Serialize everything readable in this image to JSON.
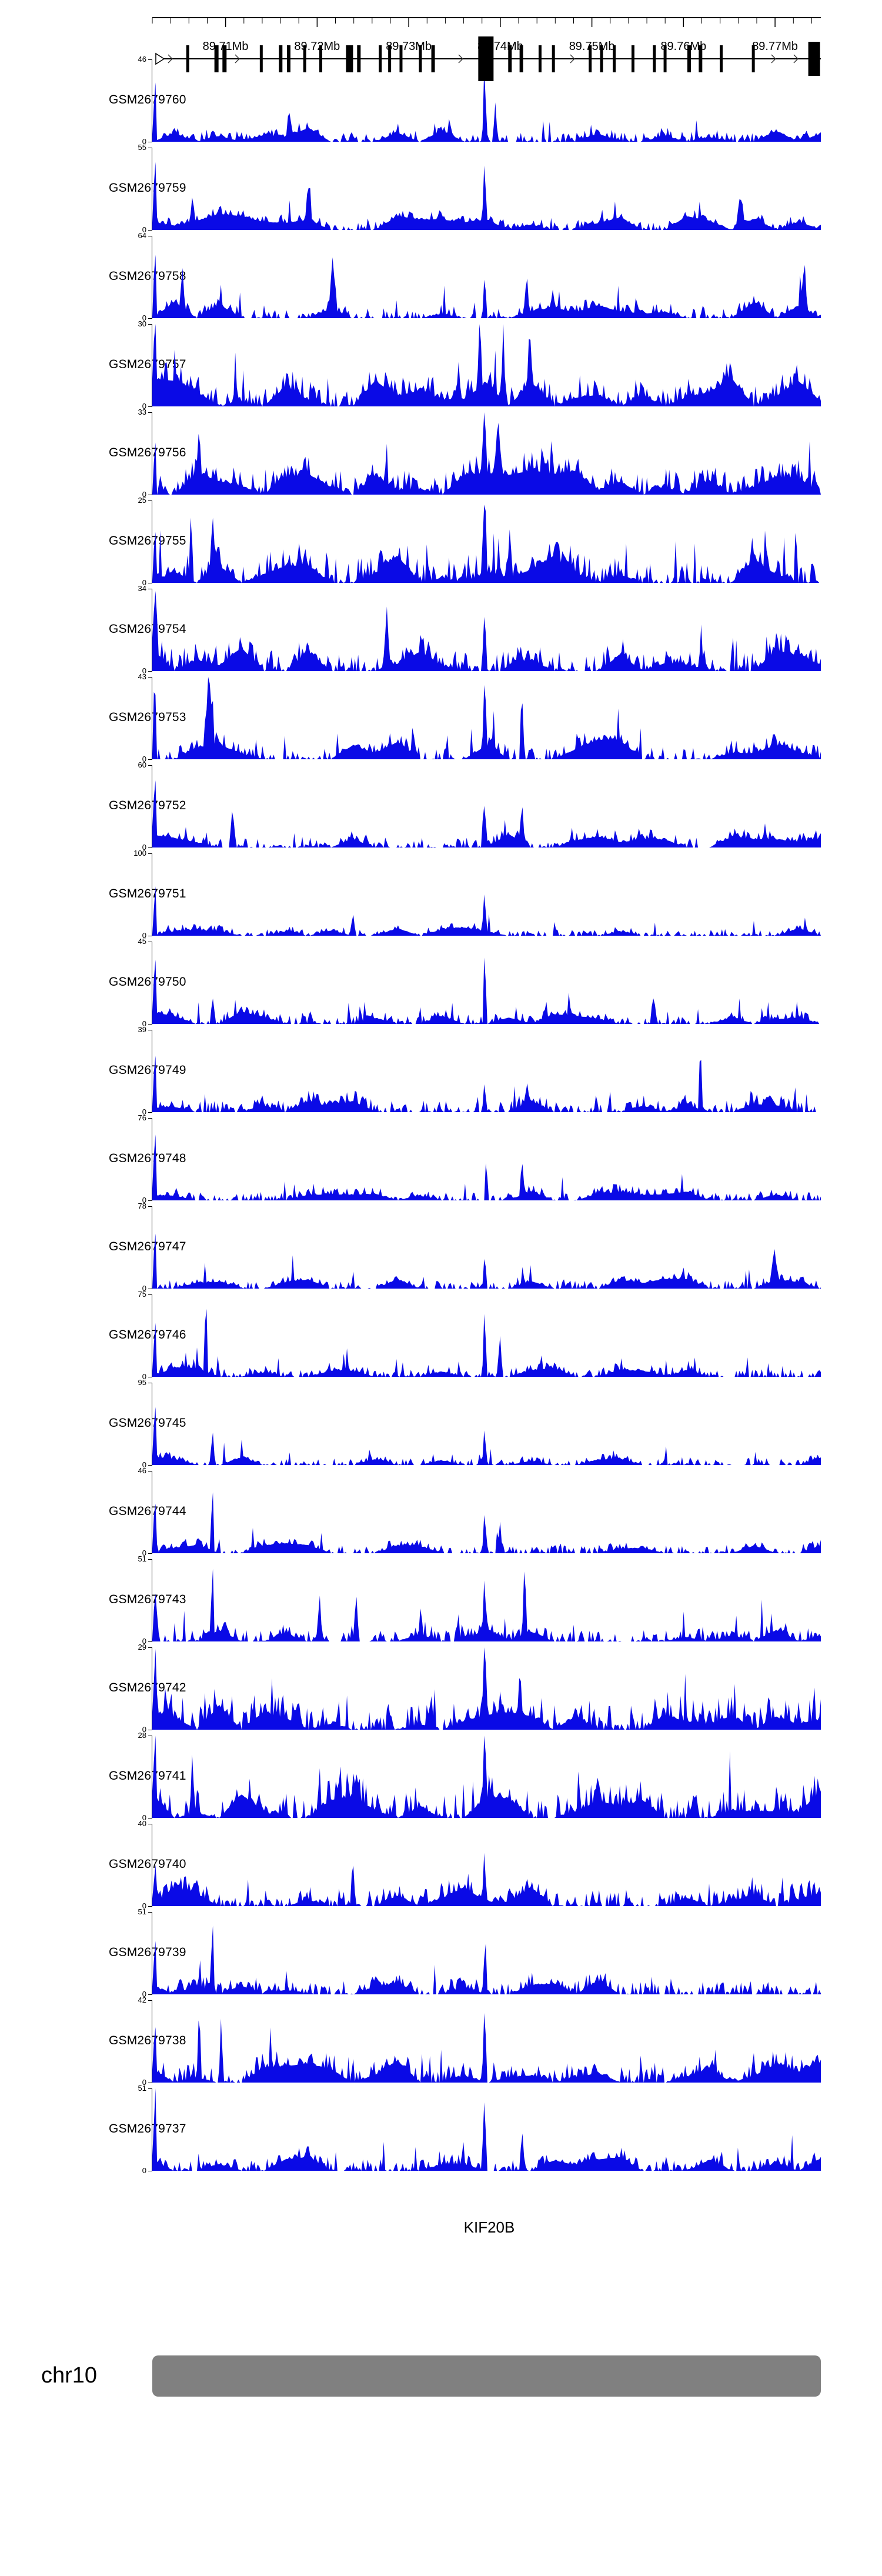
{
  "chart_data": {
    "type": "area",
    "chromosome": "chr10",
    "x_range_mb": [
      89.702,
      89.775
    ],
    "x_ticks_mb": [
      89.71,
      89.72,
      89.73,
      89.74,
      89.75,
      89.76,
      89.77
    ],
    "x_tick_labels": [
      "89.71Mb",
      "89.72Mb",
      "89.73Mb",
      "89.74Mb",
      "89.75Mb",
      "89.76Mb",
      "89.77Mb"
    ],
    "minor_tick_step_mb": 0.002,
    "colors": {
      "signal": "#0a0ae6",
      "ideogram": "#808080",
      "axis": "#000000",
      "text": "#000000"
    },
    "gene_track": {
      "label": "KIF20B",
      "strand": "+",
      "start_frac": 0.007,
      "end_frac": 1.0,
      "exons": [
        [
          0.053,
          5,
          46
        ],
        [
          0.096,
          7,
          46
        ],
        [
          0.108,
          7,
          46
        ],
        [
          0.163,
          5,
          46
        ],
        [
          0.192,
          6,
          46
        ],
        [
          0.204,
          6,
          46
        ],
        [
          0.228,
          5,
          46
        ],
        [
          0.252,
          5,
          46
        ],
        [
          0.295,
          12,
          46
        ],
        [
          0.309,
          6,
          46
        ],
        [
          0.341,
          5,
          46
        ],
        [
          0.355,
          5,
          46
        ],
        [
          0.372,
          5,
          46
        ],
        [
          0.401,
          5,
          46
        ],
        [
          0.42,
          6,
          46
        ],
        [
          0.499,
          26,
          76
        ],
        [
          0.535,
          6,
          46
        ],
        [
          0.552,
          6,
          46
        ],
        [
          0.58,
          5,
          46
        ],
        [
          0.6,
          5,
          46
        ],
        [
          0.655,
          5,
          46
        ],
        [
          0.672,
          5,
          46
        ],
        [
          0.691,
          5,
          46
        ],
        [
          0.719,
          5,
          46
        ],
        [
          0.751,
          5,
          46
        ],
        [
          0.767,
          5,
          46
        ],
        [
          0.803,
          6,
          46
        ],
        [
          0.82,
          6,
          46
        ],
        [
          0.851,
          5,
          46
        ],
        [
          0.899,
          5,
          46
        ],
        [
          0.99,
          20,
          58
        ]
      ]
    },
    "tracks": [
      {
        "name": "GSM2679760",
        "ylim": [
          0,
          46
        ],
        "seed": 101,
        "noise": 0.06,
        "wedge": 0.18,
        "spike": 0.3,
        "peaks": [
          [
            0.004,
            0.95,
            0.003
          ],
          [
            0.497,
            1.0,
            0.0035
          ],
          [
            0.513,
            0.45,
            0.004
          ],
          [
            0.205,
            0.28,
            0.005
          ]
        ]
      },
      {
        "name": "GSM2679759",
        "ylim": [
          0,
          55
        ],
        "seed": 102,
        "noise": 0.05,
        "wedge": 0.2,
        "spike": 0.28,
        "peaks": [
          [
            0.004,
            1.0,
            0.003
          ],
          [
            0.06,
            0.32,
            0.004
          ],
          [
            0.233,
            0.5,
            0.004
          ],
          [
            0.497,
            0.72,
            0.0035
          ],
          [
            0.88,
            0.34,
            0.006
          ]
        ]
      },
      {
        "name": "GSM2679758",
        "ylim": [
          0,
          64
        ],
        "seed": 103,
        "noise": 0.06,
        "wedge": 0.22,
        "spike": 0.34,
        "peaks": [
          [
            0.004,
            1.0,
            0.003
          ],
          [
            0.045,
            0.5,
            0.004
          ],
          [
            0.27,
            0.62,
            0.006
          ],
          [
            0.497,
            0.56,
            0.0035
          ],
          [
            0.56,
            0.5,
            0.004
          ],
          [
            0.975,
            0.55,
            0.005
          ]
        ]
      },
      {
        "name": "GSM2679757",
        "ylim": [
          0,
          30
        ],
        "seed": 104,
        "noise": 0.12,
        "wedge": 0.34,
        "spike": 0.45,
        "peaks": [
          [
            0.004,
            0.9,
            0.003
          ],
          [
            0.49,
            0.9,
            0.004
          ],
          [
            0.525,
            0.8,
            0.004
          ],
          [
            0.565,
            0.6,
            0.004
          ]
        ]
      },
      {
        "name": "GSM2679756",
        "ylim": [
          0,
          33
        ],
        "seed": 105,
        "noise": 0.12,
        "wedge": 0.3,
        "spike": 0.45,
        "peaks": [
          [
            0.004,
            0.85,
            0.003
          ],
          [
            0.07,
            0.6,
            0.004
          ],
          [
            0.497,
            1.0,
            0.0035
          ],
          [
            0.517,
            0.8,
            0.004
          ]
        ]
      },
      {
        "name": "GSM2679755",
        "ylim": [
          0,
          25
        ],
        "seed": 106,
        "noise": 0.15,
        "wedge": 0.34,
        "spike": 0.5,
        "peaks": [
          [
            0.004,
            0.8,
            0.003
          ],
          [
            0.058,
            0.9,
            0.0035
          ],
          [
            0.09,
            0.8,
            0.0035
          ],
          [
            0.497,
            1.0,
            0.0035
          ],
          [
            0.535,
            0.6,
            0.004
          ]
        ]
      },
      {
        "name": "GSM2679754",
        "ylim": [
          0,
          34
        ],
        "seed": 107,
        "noise": 0.12,
        "wedge": 0.3,
        "spike": 0.45,
        "peaks": [
          [
            0.004,
            1.0,
            0.003
          ],
          [
            0.35,
            0.6,
            0.005
          ],
          [
            0.497,
            0.7,
            0.0035
          ]
        ]
      },
      {
        "name": "GSM2679753",
        "ylim": [
          0,
          43
        ],
        "seed": 108,
        "noise": 0.08,
        "wedge": 0.27,
        "spike": 0.4,
        "peaks": [
          [
            0.004,
            1.0,
            0.003
          ],
          [
            0.085,
            0.85,
            0.008
          ],
          [
            0.497,
            0.9,
            0.0035
          ],
          [
            0.553,
            0.85,
            0.0035
          ]
        ]
      },
      {
        "name": "GSM2679752",
        "ylim": [
          0,
          60
        ],
        "seed": 109,
        "noise": 0.06,
        "wedge": 0.18,
        "spike": 0.32,
        "peaks": [
          [
            0.004,
            0.9,
            0.003
          ],
          [
            0.12,
            0.5,
            0.005
          ],
          [
            0.497,
            0.6,
            0.0035
          ],
          [
            0.553,
            0.5,
            0.004
          ]
        ]
      },
      {
        "name": "GSM2679751",
        "ylim": [
          0,
          100
        ],
        "seed": 110,
        "noise": 0.04,
        "wedge": 0.1,
        "spike": 0.22,
        "peaks": [
          [
            0.004,
            0.7,
            0.003
          ],
          [
            0.3,
            0.25,
            0.005
          ],
          [
            0.497,
            0.5,
            0.0035
          ]
        ]
      },
      {
        "name": "GSM2679750",
        "ylim": [
          0,
          45
        ],
        "seed": 111,
        "noise": 0.05,
        "wedge": 0.15,
        "spike": 0.26,
        "peaks": [
          [
            0.004,
            0.85,
            0.003
          ],
          [
            0.09,
            0.3,
            0.004
          ],
          [
            0.497,
            1.0,
            0.003
          ],
          [
            0.75,
            0.35,
            0.005
          ]
        ]
      },
      {
        "name": "GSM2679749",
        "ylim": [
          0,
          39
        ],
        "seed": 112,
        "noise": 0.07,
        "wedge": 0.15,
        "spike": 0.3,
        "peaks": [
          [
            0.004,
            0.85,
            0.003
          ],
          [
            0.497,
            0.4,
            0.0035
          ],
          [
            0.82,
            0.9,
            0.003
          ]
        ]
      },
      {
        "name": "GSM2679748",
        "ylim": [
          0,
          76
        ],
        "seed": 113,
        "noise": 0.05,
        "wedge": 0.12,
        "spike": 0.26,
        "peaks": [
          [
            0.004,
            1.0,
            0.003
          ],
          [
            0.5,
            0.4,
            0.0035
          ],
          [
            0.553,
            0.45,
            0.004
          ]
        ]
      },
      {
        "name": "GSM2679747",
        "ylim": [
          0,
          78
        ],
        "seed": 114,
        "noise": 0.05,
        "wedge": 0.12,
        "spike": 0.26,
        "peaks": [
          [
            0.004,
            0.9,
            0.003
          ],
          [
            0.497,
            0.4,
            0.0035
          ],
          [
            0.93,
            0.4,
            0.005
          ]
        ]
      },
      {
        "name": "GSM2679746",
        "ylim": [
          0,
          75
        ],
        "seed": 115,
        "noise": 0.05,
        "wedge": 0.12,
        "spike": 0.26,
        "peaks": [
          [
            0.004,
            0.85,
            0.003
          ],
          [
            0.08,
            1.0,
            0.003
          ],
          [
            0.497,
            0.9,
            0.0035
          ],
          [
            0.52,
            0.5,
            0.004
          ]
        ]
      },
      {
        "name": "GSM2679745",
        "ylim": [
          0,
          95
        ],
        "seed": 116,
        "noise": 0.04,
        "wedge": 0.1,
        "spike": 0.22,
        "peaks": [
          [
            0.004,
            0.8,
            0.003
          ],
          [
            0.09,
            0.4,
            0.004
          ],
          [
            0.497,
            0.5,
            0.0035
          ]
        ]
      },
      {
        "name": "GSM2679744",
        "ylim": [
          0,
          46
        ],
        "seed": 117,
        "noise": 0.05,
        "wedge": 0.12,
        "spike": 0.26,
        "peaks": [
          [
            0.004,
            0.8,
            0.003
          ],
          [
            0.09,
            0.9,
            0.003
          ],
          [
            0.497,
            0.55,
            0.0035
          ],
          [
            0.52,
            0.4,
            0.004
          ]
        ]
      },
      {
        "name": "GSM2679743",
        "ylim": [
          0,
          51
        ],
        "seed": 118,
        "noise": 0.07,
        "wedge": 0.18,
        "spike": 0.34,
        "peaks": [
          [
            0.004,
            0.6,
            0.003
          ],
          [
            0.09,
            1.0,
            0.003
          ],
          [
            0.25,
            0.5,
            0.005
          ],
          [
            0.305,
            0.45,
            0.005
          ],
          [
            0.497,
            0.6,
            0.0035
          ],
          [
            0.557,
            0.9,
            0.0035
          ]
        ]
      },
      {
        "name": "GSM2679742",
        "ylim": [
          0,
          29
        ],
        "seed": 119,
        "noise": 0.15,
        "wedge": 0.3,
        "spike": 0.5,
        "peaks": [
          [
            0.004,
            0.7,
            0.003
          ],
          [
            0.497,
            1.0,
            0.0035
          ],
          [
            0.55,
            0.6,
            0.004
          ]
        ]
      },
      {
        "name": "GSM2679741",
        "ylim": [
          0,
          28
        ],
        "seed": 120,
        "noise": 0.15,
        "wedge": 0.32,
        "spike": 0.5,
        "peaks": [
          [
            0.004,
            0.9,
            0.003
          ],
          [
            0.06,
            0.8,
            0.0035
          ],
          [
            0.497,
            1.0,
            0.0035
          ]
        ]
      },
      {
        "name": "GSM2679740",
        "ylim": [
          0,
          40
        ],
        "seed": 121,
        "noise": 0.1,
        "wedge": 0.25,
        "spike": 0.42,
        "peaks": [
          [
            0.004,
            0.6,
            0.003
          ],
          [
            0.3,
            0.6,
            0.004
          ],
          [
            0.497,
            0.55,
            0.0035
          ]
        ]
      },
      {
        "name": "GSM2679739",
        "ylim": [
          0,
          51
        ],
        "seed": 122,
        "noise": 0.08,
        "wedge": 0.2,
        "spike": 0.36,
        "peaks": [
          [
            0.004,
            0.6,
            0.003
          ],
          [
            0.09,
            1.0,
            0.003
          ],
          [
            0.497,
            0.5,
            0.0035
          ]
        ]
      },
      {
        "name": "GSM2679738",
        "ylim": [
          0,
          42
        ],
        "seed": 123,
        "noise": 0.1,
        "wedge": 0.27,
        "spike": 0.45,
        "peaks": [
          [
            0.004,
            0.7,
            0.003
          ],
          [
            0.07,
            0.9,
            0.0035
          ],
          [
            0.103,
            0.85,
            0.0035
          ],
          [
            0.497,
            1.0,
            0.0035
          ]
        ]
      },
      {
        "name": "GSM2679737",
        "ylim": [
          0,
          51
        ],
        "seed": 124,
        "noise": 0.07,
        "wedge": 0.2,
        "spike": 0.36,
        "peaks": [
          [
            0.004,
            1.0,
            0.003
          ],
          [
            0.497,
            0.9,
            0.0035
          ],
          [
            0.553,
            0.5,
            0.004
          ]
        ]
      }
    ]
  }
}
